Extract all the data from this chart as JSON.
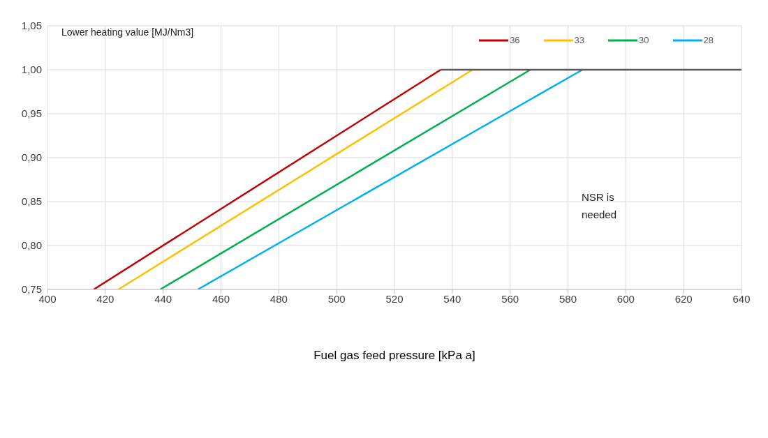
{
  "chart_data": {
    "type": "line",
    "legend_title": "Lower heating value [MJ/Nm3]",
    "xlabel": "Fuel gas feed pressure [kPa a]",
    "annotations": [
      "NSR is needed"
    ],
    "series": [
      {
        "name": "36",
        "color": "#c00000",
        "x": [
          416,
          536
        ],
        "values": [
          0.75,
          1.0
        ]
      },
      {
        "name": "33",
        "color": "#ffc000",
        "x": [
          424.5,
          547
        ],
        "values": [
          0.75,
          1.0
        ]
      },
      {
        "name": "30",
        "color": "#00b050",
        "x": [
          439,
          567
        ],
        "values": [
          0.75,
          1.0
        ]
      },
      {
        "name": "28",
        "color": "#00b0f0",
        "x": [
          452,
          585
        ],
        "values": [
          0.75,
          1.0
        ]
      },
      {
        "color": "#595959",
        "x": [
          536,
          640
        ],
        "values": [
          1.0,
          1.0
        ]
      }
    ],
    "xlim": [
      400,
      640
    ],
    "xticks": [
      400,
      420,
      440,
      460,
      480,
      500,
      520,
      540,
      560,
      580,
      600,
      620,
      640
    ],
    "ylim": [
      0.75,
      1.05
    ],
    "yticks": [
      {
        "value": 0.75,
        "label": "0,75"
      },
      {
        "value": 0.8,
        "label": "0,80"
      },
      {
        "value": 0.85,
        "label": "0,85"
      },
      {
        "value": 0.9,
        "label": "0,90"
      },
      {
        "value": 0.95,
        "label": "0,95"
      },
      {
        "value": 1.0,
        "label": "1,00"
      },
      {
        "value": 1.05,
        "label": "1,05"
      }
    ],
    "grid": true,
    "legend": "top right",
    "marker": "none",
    "line_style": "solid"
  }
}
